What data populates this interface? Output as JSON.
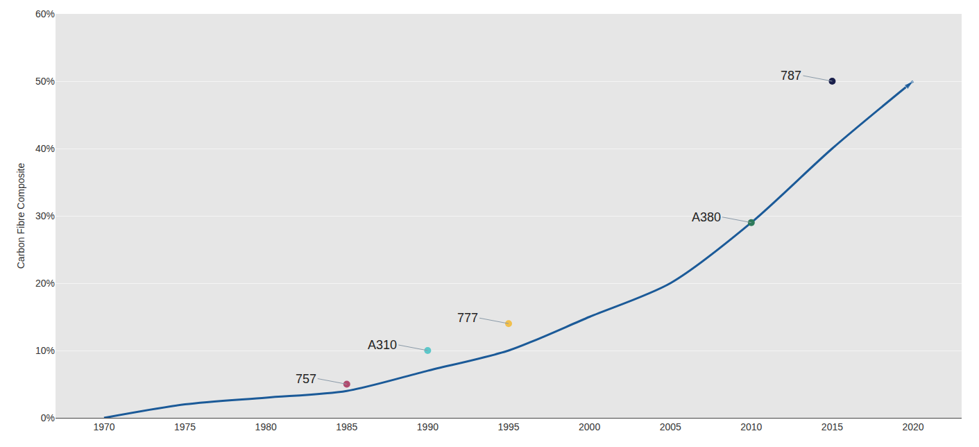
{
  "chart_data": {
    "type": "line",
    "y_label": "Carbon Fibre Composite",
    "x": [
      1970,
      1975,
      1980,
      1985,
      1990,
      1995,
      2000,
      2005,
      2010,
      2015,
      2020
    ],
    "series": [
      {
        "values": [
          0,
          2,
          3,
          4,
          7,
          10,
          15,
          20,
          29,
          40,
          50
        ],
        "color": "#1b5a98",
        "line_style": "solid",
        "marker": "arrow"
      }
    ],
    "points": [
      {
        "label": "757",
        "x": 1985,
        "y": 5,
        "color": "#b14b6e"
      },
      {
        "label": "A310",
        "x": 1990,
        "y": 10,
        "color": "#5cc7c9"
      },
      {
        "label": "777",
        "x": 1995,
        "y": 14,
        "color": "#f1bf4c"
      },
      {
        "label": "A380",
        "x": 2010,
        "y": 29,
        "color": "#2d7a5a"
      },
      {
        "label": "787",
        "x": 2015,
        "y": 50,
        "color": "#1a1f4b"
      }
    ],
    "xlim": [
      1967,
      2023
    ],
    "xticks": [
      1970,
      1975,
      1980,
      1985,
      1990,
      1995,
      2000,
      2005,
      2010,
      2015,
      2020
    ],
    "ylim": [
      0,
      60
    ],
    "yticks": [
      {
        "value": 0,
        "label": "0%"
      },
      {
        "value": 10,
        "label": "10%"
      },
      {
        "value": 20,
        "label": "20%"
      },
      {
        "value": 30,
        "label": "30%"
      },
      {
        "value": 40,
        "label": "40%"
      },
      {
        "value": 50,
        "label": "50%"
      },
      {
        "value": 60,
        "label": "60%"
      }
    ],
    "grid": "y"
  }
}
